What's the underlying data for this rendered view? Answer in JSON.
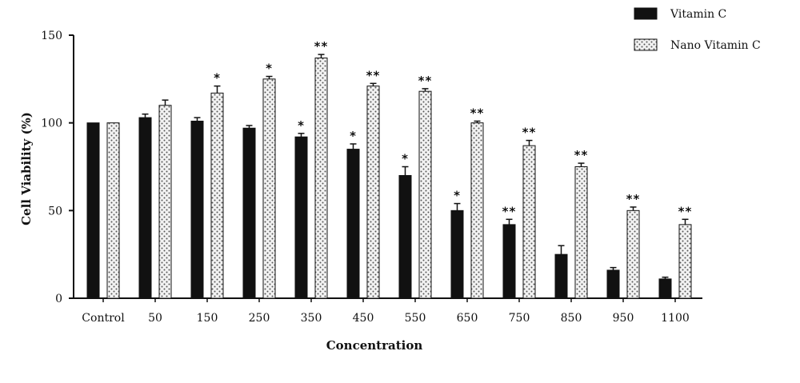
{
  "chart_data": {
    "type": "bar",
    "title": "",
    "xlabel": "Concentration",
    "ylabel": "Cell Viability (%)",
    "ylim": [
      0,
      150
    ],
    "yticks": [
      "0",
      "50",
      "100",
      "150"
    ],
    "grid": false,
    "legend_position": "top-right",
    "categories": [
      "Control",
      "50",
      "150",
      "250",
      "350",
      "450",
      "550",
      "650",
      "750",
      "850",
      "950",
      "1100"
    ],
    "series": [
      {
        "name": "Vitamin C",
        "color": "#111111",
        "pattern": "solid",
        "values": [
          100,
          103,
          101,
          97,
          92,
          85,
          70,
          50,
          42,
          25,
          16,
          11
        ],
        "errors": [
          0,
          2,
          2,
          1.5,
          2,
          3,
          5,
          4,
          3,
          5,
          1.5,
          1
        ],
        "significance": [
          "",
          "",
          "",
          "",
          "*",
          "*",
          "*",
          "*",
          "**",
          "",
          "",
          ""
        ]
      },
      {
        "name": "Nano Vitamin C",
        "color": "#e8e8e8",
        "pattern": "dotted",
        "values": [
          100,
          110,
          117,
          125,
          137,
          121,
          118,
          100,
          87,
          75,
          50,
          42
        ],
        "errors": [
          0,
          3,
          4,
          1.5,
          2,
          1.5,
          1.5,
          1,
          3,
          2,
          2,
          3
        ],
        "significance": [
          "",
          "",
          "*",
          "*",
          "**",
          "**",
          "**",
          "**",
          "**",
          "**",
          "**",
          "**"
        ]
      }
    ]
  }
}
